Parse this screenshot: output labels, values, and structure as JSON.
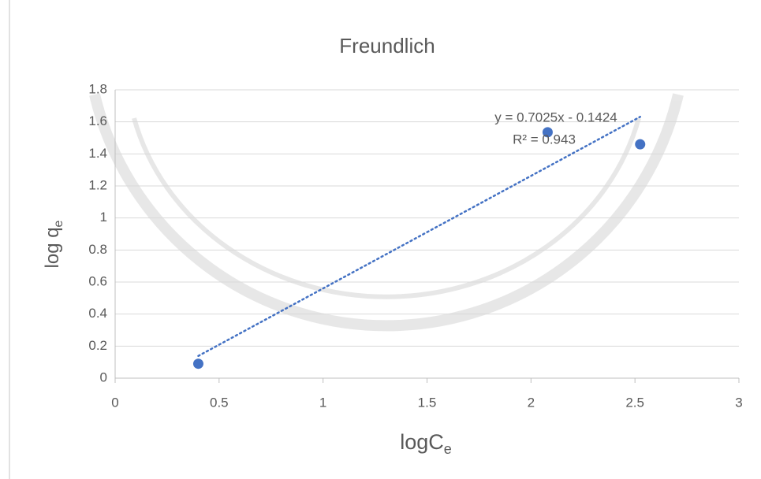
{
  "chart_data": {
    "type": "scatter",
    "title": "Freundlich",
    "xlabel": "logC",
    "xlabel_sub": "e",
    "ylabel": "log q",
    "ylabel_sub": "e",
    "x": [
      0.4,
      2.08,
      2.525
    ],
    "values": [
      0.09,
      1.535,
      1.46
    ],
    "color": "#4472c4",
    "xlim": [
      0,
      3
    ],
    "xticks": [
      0,
      0.5,
      1,
      1.5,
      2,
      2.5,
      3
    ],
    "ylim": [
      0,
      1.8
    ],
    "yticks": [
      0,
      0.2,
      0.4,
      0.6,
      0.8,
      1,
      1.2,
      1.4,
      1.6,
      1.8
    ],
    "grid": true,
    "trendline": {
      "equation": "y = 0.7025x - 0.1424",
      "r_squared_label": "R² = 0.943",
      "slope": 0.7025,
      "intercept": -0.1424
    }
  }
}
